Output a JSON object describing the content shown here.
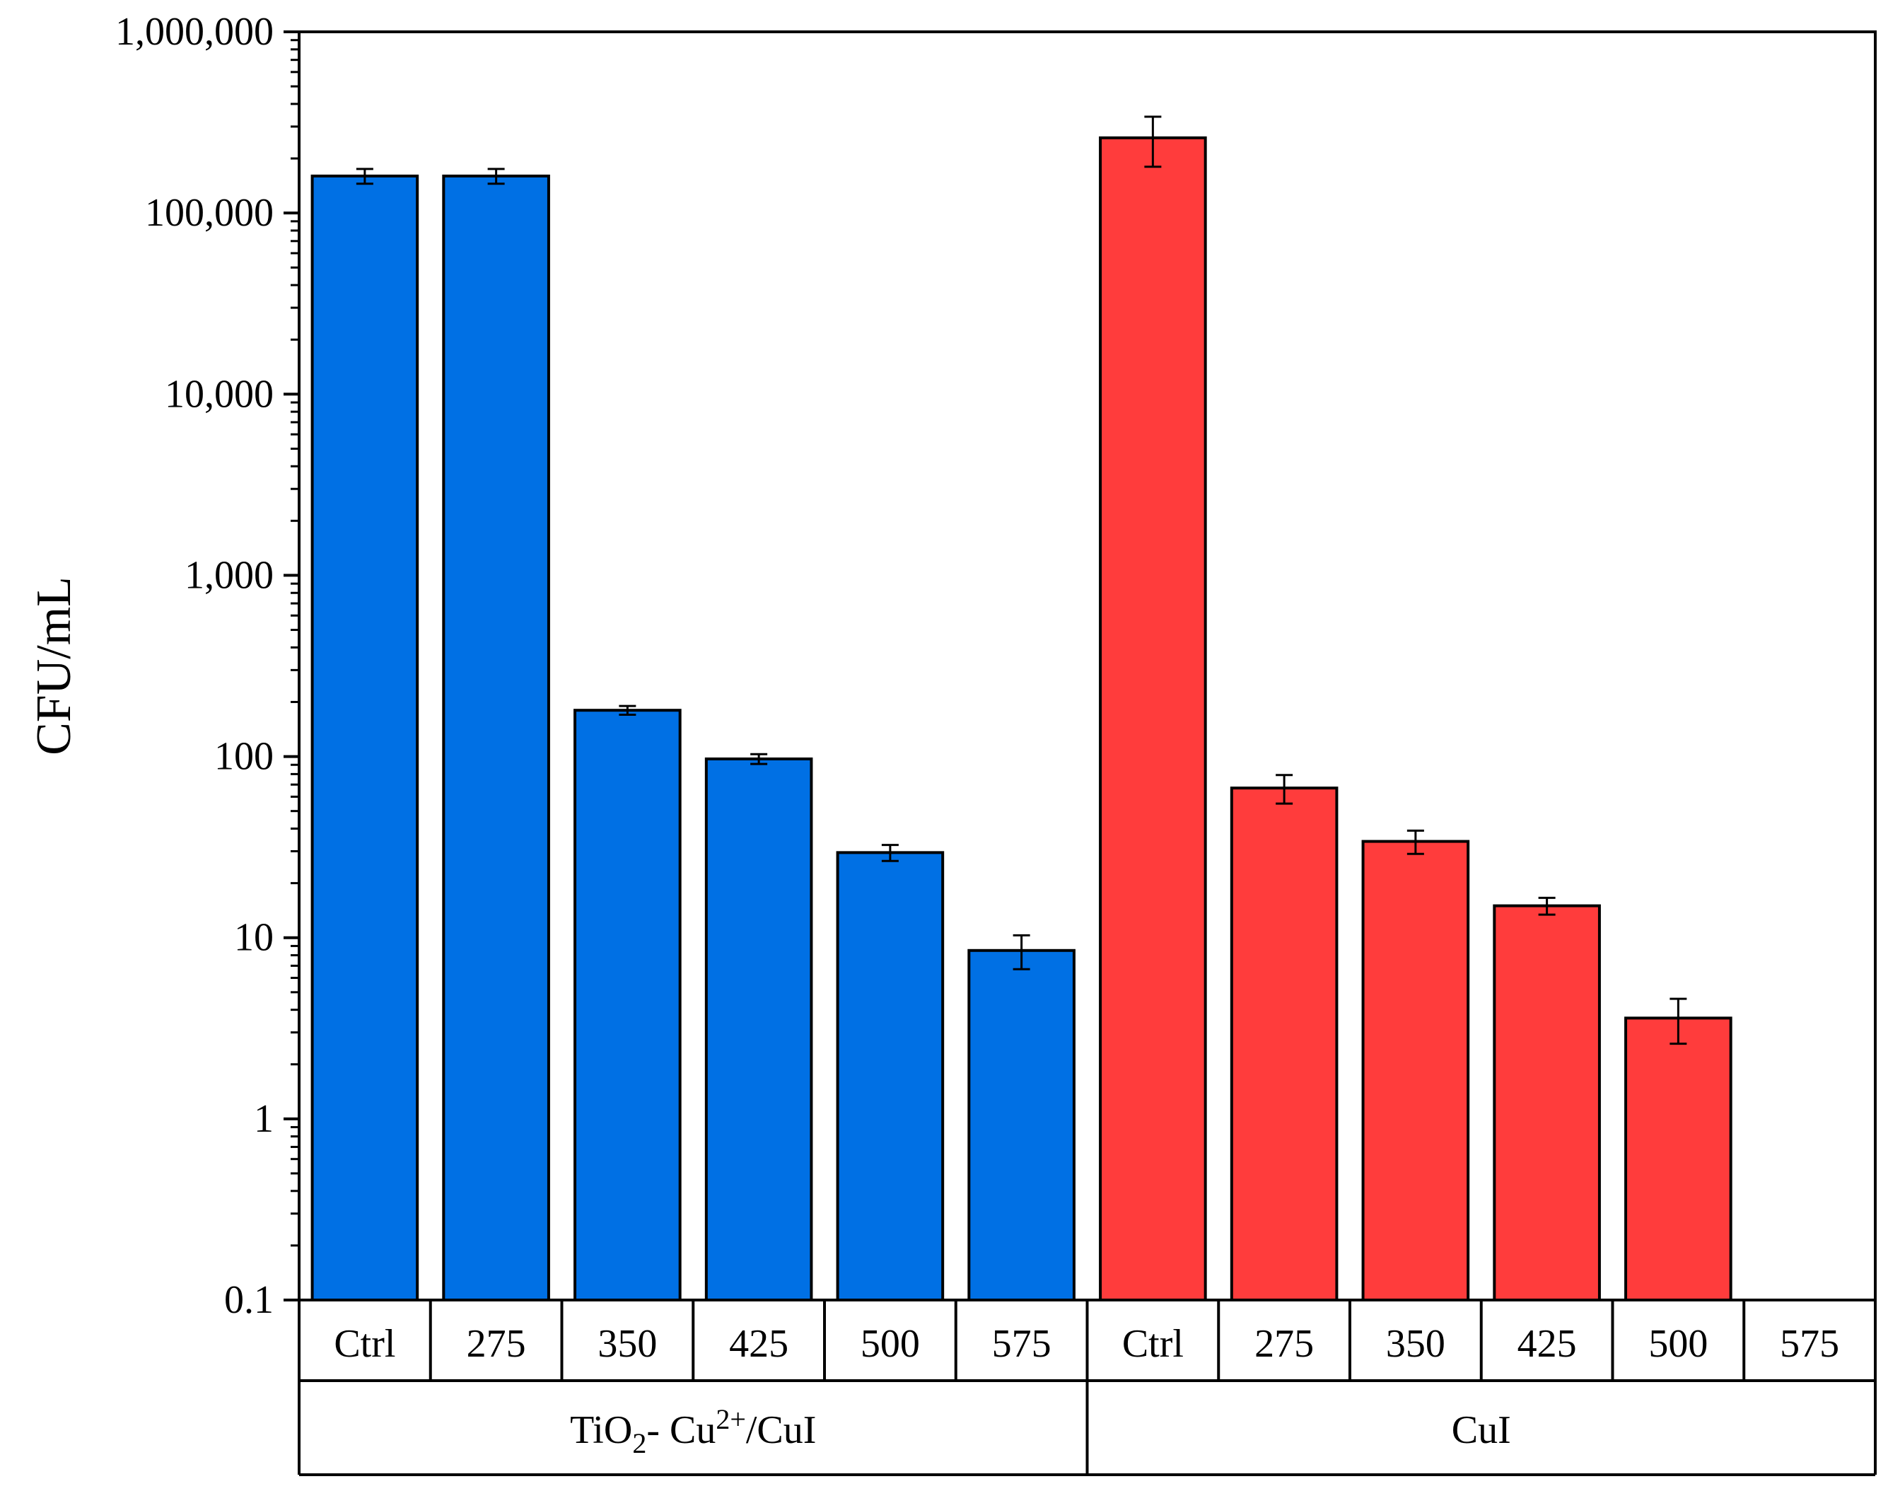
{
  "chart_data": {
    "type": "bar",
    "yscale": "log",
    "ylim": [
      0.1,
      1000000
    ],
    "ylabel": "CFU/mL",
    "xlabel": "",
    "title": "",
    "grid": false,
    "y_ticks": [
      {
        "value": 0.1,
        "label": "0.1"
      },
      {
        "value": 1,
        "label": "1"
      },
      {
        "value": 10,
        "label": "10"
      },
      {
        "value": 100,
        "label": "100"
      },
      {
        "value": 1000,
        "label": "1,000"
      },
      {
        "value": 10000,
        "label": "10,000"
      },
      {
        "value": 100000,
        "label": "100,000"
      },
      {
        "value": 1000000,
        "label": "1,000,000"
      }
    ],
    "groups": [
      {
        "name": "TiO2- Cu2+/CuI",
        "label_parts": {
          "a": "TiO",
          "sub": "2",
          "b": "- Cu",
          "sup": "2+",
          "c": "/CuI"
        },
        "color": "#0070e4",
        "categories": [
          "Ctrl",
          "275",
          "350",
          "425",
          "500",
          "575"
        ],
        "values": [
          160000,
          160000,
          180,
          97,
          29.5,
          8.5
        ],
        "errors": [
          15000,
          15000,
          10,
          6,
          3,
          1.8
        ]
      },
      {
        "name": "CuI",
        "color": "#ff3c3c",
        "categories": [
          "Ctrl",
          "275",
          "350",
          "425",
          "500",
          "575"
        ],
        "values": [
          260000,
          67,
          34,
          15,
          3.6,
          null
        ],
        "errors": [
          80000,
          12,
          5,
          1.6,
          1.0,
          null
        ]
      }
    ]
  }
}
